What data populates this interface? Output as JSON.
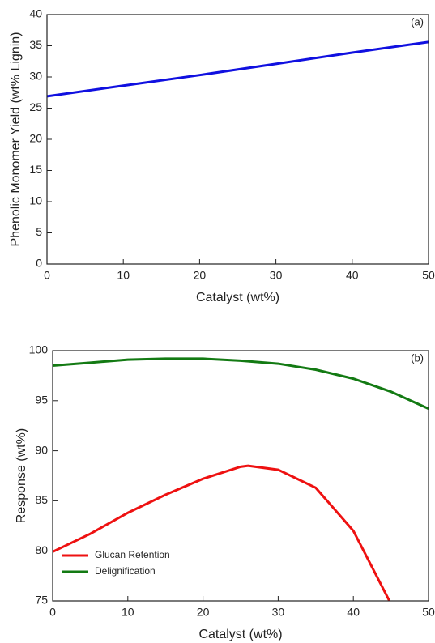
{
  "chart_data": [
    {
      "type": "line",
      "annotation": "(a)",
      "xlabel": "Catalyst (wt%)",
      "ylabel": "Phenolic Monomer Yield (wt% Lignin)",
      "x": [
        0,
        10,
        20,
        30,
        40,
        50
      ],
      "values": [
        26.9,
        28.6,
        30.3,
        32.1,
        33.9,
        35.6
      ],
      "color": "#1010e0",
      "xlim": [
        0,
        50
      ],
      "ylim": [
        0,
        40
      ],
      "xticks": [
        0,
        10,
        20,
        30,
        40,
        50
      ],
      "yticks": [
        0,
        5,
        10,
        15,
        20,
        25,
        30,
        35,
        40
      ]
    },
    {
      "type": "line",
      "annotation": "(b)",
      "xlabel": "Catalyst (wt%)",
      "ylabel": "Response (wt%)",
      "series": [
        {
          "name": "Glucan Retention",
          "color": "#ee1111",
          "x": [
            0,
            5,
            10,
            15,
            20,
            25,
            26,
            30,
            35,
            40,
            44.8
          ],
          "values": [
            79.9,
            81.7,
            83.8,
            85.6,
            87.2,
            88.4,
            88.5,
            88.1,
            86.3,
            82.0,
            75.0
          ]
        },
        {
          "name": "Delignification",
          "color": "#137a13",
          "x": [
            0,
            5,
            10,
            15,
            20,
            25,
            30,
            35,
            40,
            45,
            50
          ],
          "values": [
            98.5,
            98.8,
            99.1,
            99.2,
            99.2,
            99.0,
            98.7,
            98.1,
            97.2,
            95.9,
            94.2
          ]
        }
      ],
      "legend": "lower left",
      "xlim": [
        0,
        50
      ],
      "ylim": [
        75,
        100
      ],
      "xticks": [
        0,
        10,
        20,
        30,
        40,
        50
      ],
      "yticks": [
        75,
        80,
        85,
        90,
        95,
        100
      ]
    }
  ]
}
